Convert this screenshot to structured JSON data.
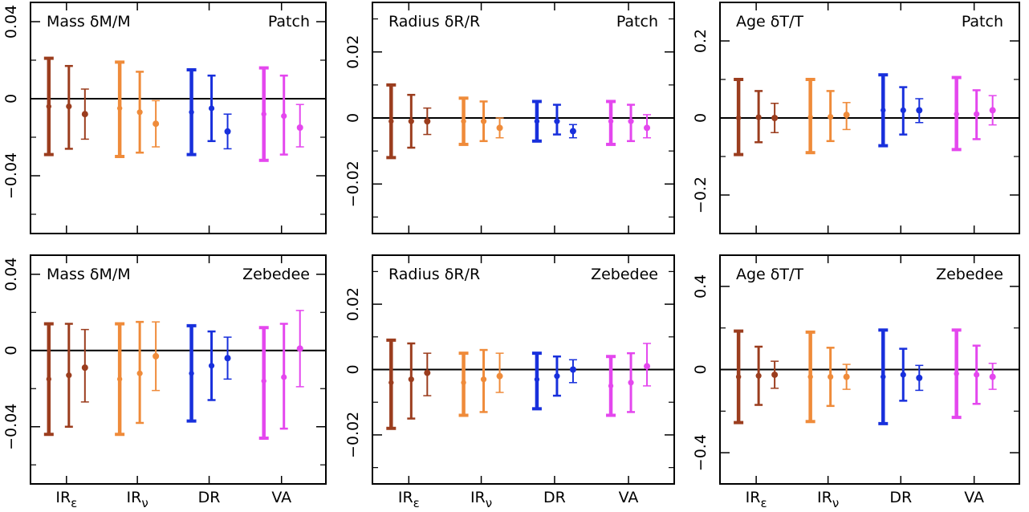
{
  "chart_data": [
    {
      "type": "errorbar",
      "panel": "mass-patch",
      "label_left": "Mass δM/M",
      "label_right": "Patch",
      "ylim": [
        -0.07,
        0.05
      ],
      "yticks": [
        0.04,
        0,
        -0.04
      ],
      "ytick_labels": [
        "0.04",
        "0",
        "−0.04"
      ],
      "minor_yticks": [
        -0.06,
        -0.02,
        0.02
      ],
      "categories": [
        "IRε",
        "IRν",
        "DR",
        "VA"
      ],
      "points": [
        {
          "group": 0,
          "sub": 0,
          "y": -0.004,
          "lo": -0.029,
          "hi": 0.021
        },
        {
          "group": 0,
          "sub": 1,
          "y": -0.004,
          "lo": -0.026,
          "hi": 0.017
        },
        {
          "group": 0,
          "sub": 2,
          "y": -0.008,
          "lo": -0.021,
          "hi": 0.005
        },
        {
          "group": 1,
          "sub": 0,
          "y": -0.005,
          "lo": -0.03,
          "hi": 0.019
        },
        {
          "group": 1,
          "sub": 1,
          "y": -0.007,
          "lo": -0.028,
          "hi": 0.014
        },
        {
          "group": 1,
          "sub": 2,
          "y": -0.013,
          "lo": -0.025,
          "hi": -0.001
        },
        {
          "group": 2,
          "sub": 0,
          "y": -0.007,
          "lo": -0.029,
          "hi": 0.015
        },
        {
          "group": 2,
          "sub": 1,
          "y": -0.005,
          "lo": -0.022,
          "hi": 0.012
        },
        {
          "group": 2,
          "sub": 2,
          "y": -0.017,
          "lo": -0.026,
          "hi": -0.008
        },
        {
          "group": 3,
          "sub": 0,
          "y": -0.008,
          "lo": -0.032,
          "hi": 0.016
        },
        {
          "group": 3,
          "sub": 1,
          "y": -0.009,
          "lo": -0.029,
          "hi": 0.012
        },
        {
          "group": 3,
          "sub": 2,
          "y": -0.015,
          "lo": -0.025,
          "hi": -0.003
        }
      ]
    },
    {
      "type": "errorbar",
      "panel": "radius-patch",
      "label_left": "Radius δR/R",
      "label_right": "Patch",
      "ylim": [
        -0.035,
        0.035
      ],
      "yticks": [
        0.02,
        0,
        -0.02
      ],
      "ytick_labels": [
        "0.02",
        "0",
        "−0.02"
      ],
      "minor_yticks": [
        -0.03,
        -0.01,
        0.01,
        0.03
      ],
      "categories": [
        "IRε",
        "IRν",
        "DR",
        "VA"
      ],
      "points": [
        {
          "group": 0,
          "sub": 0,
          "y": -0.001,
          "lo": -0.012,
          "hi": 0.01
        },
        {
          "group": 0,
          "sub": 1,
          "y": -0.001,
          "lo": -0.009,
          "hi": 0.007
        },
        {
          "group": 0,
          "sub": 2,
          "y": -0.001,
          "lo": -0.005,
          "hi": 0.003
        },
        {
          "group": 1,
          "sub": 0,
          "y": -0.001,
          "lo": -0.008,
          "hi": 0.006
        },
        {
          "group": 1,
          "sub": 1,
          "y": -0.001,
          "lo": -0.007,
          "hi": 0.005
        },
        {
          "group": 1,
          "sub": 2,
          "y": -0.003,
          "lo": -0.006,
          "hi": 0.0
        },
        {
          "group": 2,
          "sub": 0,
          "y": -0.001,
          "lo": -0.007,
          "hi": 0.005
        },
        {
          "group": 2,
          "sub": 1,
          "y": -0.001,
          "lo": -0.005,
          "hi": 0.004
        },
        {
          "group": 2,
          "sub": 2,
          "y": -0.004,
          "lo": -0.006,
          "hi": -0.002
        },
        {
          "group": 3,
          "sub": 0,
          "y": -0.001,
          "lo": -0.008,
          "hi": 0.005
        },
        {
          "group": 3,
          "sub": 1,
          "y": -0.001,
          "lo": -0.007,
          "hi": 0.004
        },
        {
          "group": 3,
          "sub": 2,
          "y": -0.003,
          "lo": -0.006,
          "hi": 0.001
        }
      ]
    },
    {
      "type": "errorbar",
      "panel": "age-patch",
      "label_left": "Age δT/T",
      "label_right": "Patch",
      "ylim": [
        -0.3,
        0.3
      ],
      "yticks": [
        0.2,
        0,
        -0.2
      ],
      "ytick_labels": [
        "0.2",
        "0",
        "−0.2"
      ],
      "minor_yticks": [
        -0.1,
        0.1
      ],
      "categories": [
        "IRε",
        "IRν",
        "DR",
        "VA"
      ],
      "points": [
        {
          "group": 0,
          "sub": 0,
          "y": 0.0,
          "lo": -0.095,
          "hi": 0.1
        },
        {
          "group": 0,
          "sub": 1,
          "y": 0.002,
          "lo": -0.063,
          "hi": 0.07
        },
        {
          "group": 0,
          "sub": 2,
          "y": 0.0,
          "lo": -0.038,
          "hi": 0.038
        },
        {
          "group": 1,
          "sub": 0,
          "y": 0.002,
          "lo": -0.09,
          "hi": 0.1
        },
        {
          "group": 1,
          "sub": 1,
          "y": 0.003,
          "lo": -0.06,
          "hi": 0.07
        },
        {
          "group": 1,
          "sub": 2,
          "y": 0.008,
          "lo": -0.03,
          "hi": 0.04
        },
        {
          "group": 2,
          "sub": 0,
          "y": 0.02,
          "lo": -0.072,
          "hi": 0.112
        },
        {
          "group": 2,
          "sub": 1,
          "y": 0.02,
          "lo": -0.043,
          "hi": 0.08
        },
        {
          "group": 2,
          "sub": 2,
          "y": 0.02,
          "lo": -0.012,
          "hi": 0.05
        },
        {
          "group": 3,
          "sub": 0,
          "y": 0.01,
          "lo": -0.082,
          "hi": 0.105
        },
        {
          "group": 3,
          "sub": 1,
          "y": 0.01,
          "lo": -0.055,
          "hi": 0.072
        },
        {
          "group": 3,
          "sub": 2,
          "y": 0.02,
          "lo": -0.018,
          "hi": 0.058
        }
      ]
    },
    {
      "type": "errorbar",
      "panel": "mass-zebedee",
      "label_left": "Mass δM/M",
      "label_right": "Zebedee",
      "ylim": [
        -0.07,
        0.05
      ],
      "yticks": [
        0.04,
        0,
        -0.04
      ],
      "ytick_labels": [
        "0.04",
        "0",
        "−0.04"
      ],
      "minor_yticks": [
        -0.06,
        -0.02,
        0.02
      ],
      "categories": [
        "IRε",
        "IRν",
        "DR",
        "VA"
      ],
      "points": [
        {
          "group": 0,
          "sub": 0,
          "y": -0.015,
          "lo": -0.044,
          "hi": 0.014
        },
        {
          "group": 0,
          "sub": 1,
          "y": -0.013,
          "lo": -0.04,
          "hi": 0.014
        },
        {
          "group": 0,
          "sub": 2,
          "y": -0.009,
          "lo": -0.027,
          "hi": 0.011
        },
        {
          "group": 1,
          "sub": 0,
          "y": -0.015,
          "lo": -0.044,
          "hi": 0.014
        },
        {
          "group": 1,
          "sub": 1,
          "y": -0.012,
          "lo": -0.038,
          "hi": 0.015
        },
        {
          "group": 1,
          "sub": 2,
          "y": -0.003,
          "lo": -0.021,
          "hi": 0.015
        },
        {
          "group": 2,
          "sub": 0,
          "y": -0.012,
          "lo": -0.037,
          "hi": 0.013
        },
        {
          "group": 2,
          "sub": 1,
          "y": -0.008,
          "lo": -0.026,
          "hi": 0.01
        },
        {
          "group": 2,
          "sub": 2,
          "y": -0.004,
          "lo": -0.015,
          "hi": 0.007
        },
        {
          "group": 3,
          "sub": 0,
          "y": -0.016,
          "lo": -0.046,
          "hi": 0.012
        },
        {
          "group": 3,
          "sub": 1,
          "y": -0.014,
          "lo": -0.041,
          "hi": 0.014
        },
        {
          "group": 3,
          "sub": 2,
          "y": 0.001,
          "lo": -0.019,
          "hi": 0.021
        }
      ]
    },
    {
      "type": "errorbar",
      "panel": "radius-zebedee",
      "label_left": "Radius δR/R",
      "label_right": "Zebedee",
      "ylim": [
        -0.035,
        0.035
      ],
      "yticks": [
        0.02,
        0,
        -0.02
      ],
      "ytick_labels": [
        "0.02",
        "0",
        "−0.02"
      ],
      "minor_yticks": [
        -0.03,
        -0.01,
        0.01,
        0.03
      ],
      "categories": [
        "IRε",
        "IRν",
        "DR",
        "VA"
      ],
      "points": [
        {
          "group": 0,
          "sub": 0,
          "y": -0.004,
          "lo": -0.018,
          "hi": 0.009
        },
        {
          "group": 0,
          "sub": 1,
          "y": -0.003,
          "lo": -0.015,
          "hi": 0.008
        },
        {
          "group": 0,
          "sub": 2,
          "y": -0.001,
          "lo": -0.008,
          "hi": 0.005
        },
        {
          "group": 1,
          "sub": 0,
          "y": -0.004,
          "lo": -0.014,
          "hi": 0.005
        },
        {
          "group": 1,
          "sub": 1,
          "y": -0.003,
          "lo": -0.013,
          "hi": 0.006
        },
        {
          "group": 1,
          "sub": 2,
          "y": -0.002,
          "lo": -0.007,
          "hi": 0.005
        },
        {
          "group": 2,
          "sub": 0,
          "y": -0.003,
          "lo": -0.012,
          "hi": 0.005
        },
        {
          "group": 2,
          "sub": 1,
          "y": -0.002,
          "lo": -0.008,
          "hi": 0.004
        },
        {
          "group": 2,
          "sub": 2,
          "y": 0.0,
          "lo": -0.004,
          "hi": 0.003
        },
        {
          "group": 3,
          "sub": 0,
          "y": -0.005,
          "lo": -0.014,
          "hi": 0.004
        },
        {
          "group": 3,
          "sub": 1,
          "y": -0.004,
          "lo": -0.013,
          "hi": 0.005
        },
        {
          "group": 3,
          "sub": 2,
          "y": 0.001,
          "lo": -0.005,
          "hi": 0.008
        }
      ]
    },
    {
      "type": "errorbar",
      "panel": "age-zebedee",
      "label_left": "Age δT/T",
      "label_right": "Zebedee",
      "ylim": [
        -0.55,
        0.55
      ],
      "yticks": [
        0.4,
        0,
        -0.4
      ],
      "ytick_labels": [
        "0.4",
        "0",
        "−0.4"
      ],
      "minor_yticks": [
        -0.2,
        0.2
      ],
      "categories": [
        "IRε",
        "IRν",
        "DR",
        "VA"
      ],
      "points": [
        {
          "group": 0,
          "sub": 0,
          "y": -0.035,
          "lo": -0.255,
          "hi": 0.185
        },
        {
          "group": 0,
          "sub": 1,
          "y": -0.03,
          "lo": -0.17,
          "hi": 0.11
        },
        {
          "group": 0,
          "sub": 2,
          "y": -0.025,
          "lo": -0.09,
          "hi": 0.04
        },
        {
          "group": 1,
          "sub": 0,
          "y": -0.035,
          "lo": -0.25,
          "hi": 0.18
        },
        {
          "group": 1,
          "sub": 1,
          "y": -0.035,
          "lo": -0.175,
          "hi": 0.105
        },
        {
          "group": 1,
          "sub": 2,
          "y": -0.035,
          "lo": -0.095,
          "hi": 0.025
        },
        {
          "group": 2,
          "sub": 0,
          "y": -0.035,
          "lo": -0.26,
          "hi": 0.19
        },
        {
          "group": 2,
          "sub": 1,
          "y": -0.025,
          "lo": -0.15,
          "hi": 0.1
        },
        {
          "group": 2,
          "sub": 2,
          "y": -0.04,
          "lo": -0.1,
          "hi": 0.02
        },
        {
          "group": 3,
          "sub": 0,
          "y": -0.02,
          "lo": -0.23,
          "hi": 0.19
        },
        {
          "group": 3,
          "sub": 1,
          "y": -0.025,
          "lo": -0.165,
          "hi": 0.115
        },
        {
          "group": 3,
          "sub": 2,
          "y": -0.035,
          "lo": -0.095,
          "hi": 0.03
        }
      ]
    }
  ],
  "group_colors": [
    "#9b3d1e",
    "#ef8b3a",
    "#1830dc",
    "#e447ee"
  ],
  "x_label_parts": [
    {
      "main": "IR",
      "sub": "ε"
    },
    {
      "main": "IR",
      "sub": "ν"
    },
    {
      "main": "DR",
      "sub": ""
    },
    {
      "main": "VA",
      "sub": ""
    }
  ]
}
